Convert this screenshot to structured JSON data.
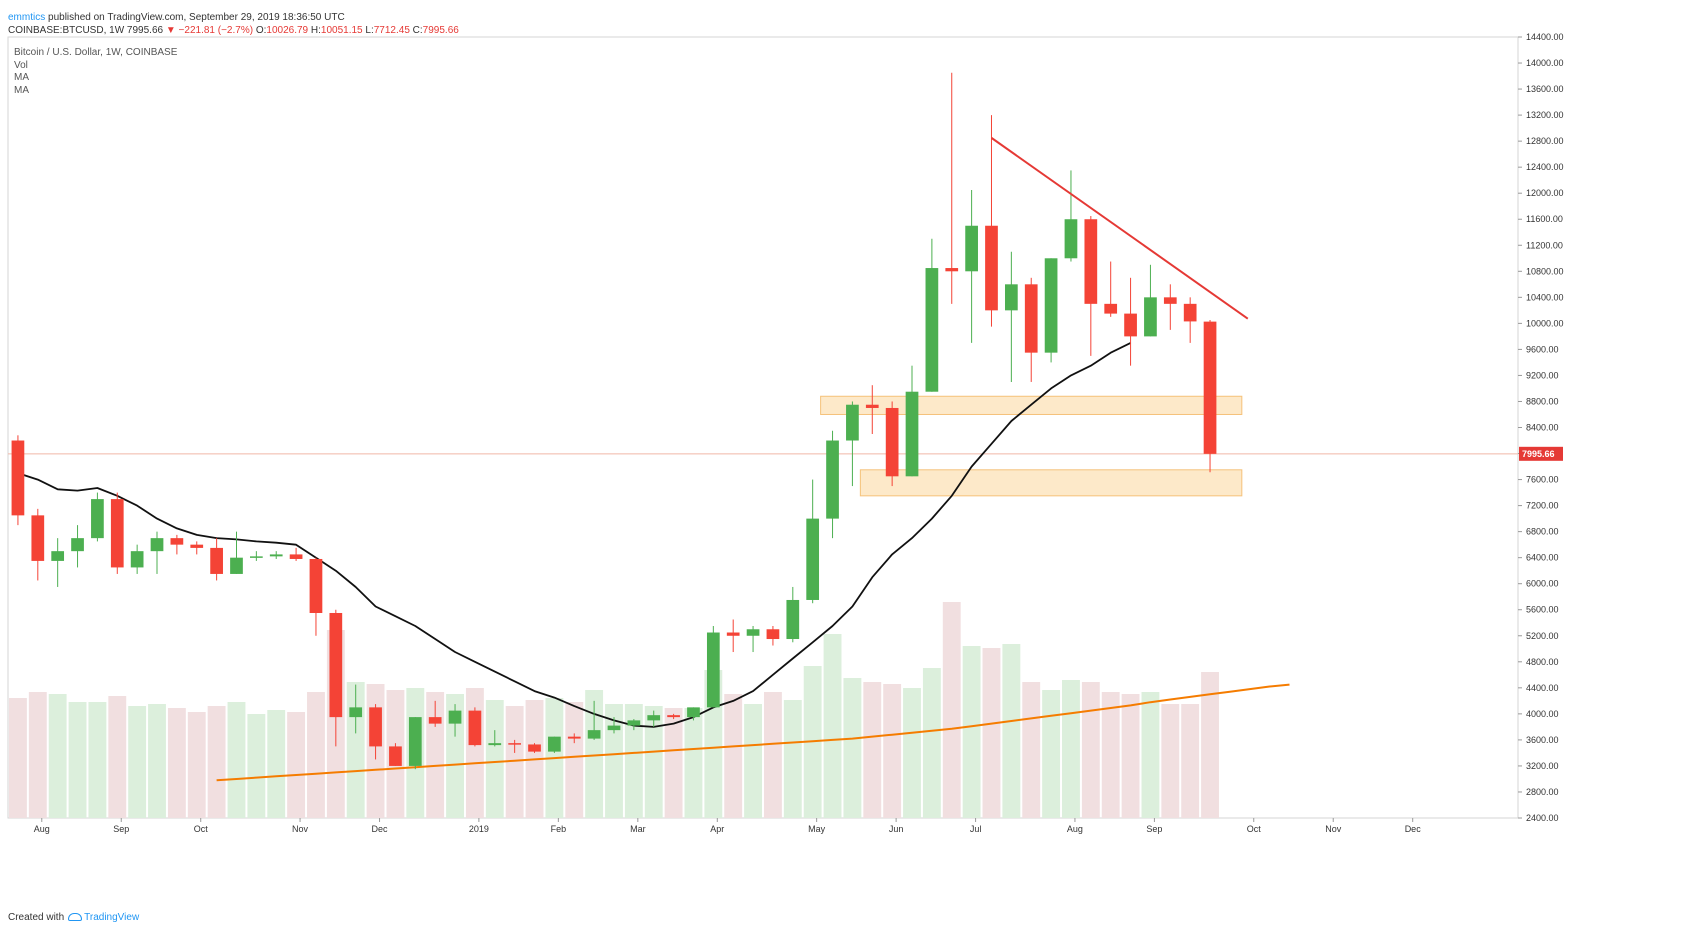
{
  "header": {
    "author": "emmtics",
    "published_text": "published on TradingView.com, September 29, 2019 18:36:50 UTC",
    "symbol": "COINBASE:BTCUSD, 1W",
    "price": "7995.66",
    "change": "−221.81 (−2.7%)",
    "o_label": "O:",
    "o": "10026.79",
    "h_label": "H:",
    "h": "10051.15",
    "l_label": "L:",
    "l": "7712.45",
    "c_label": "C:",
    "c": "7995.66"
  },
  "legend": {
    "title": "Bitcoin / U.S. Dollar, 1W, COINBASE",
    "vol": "Vol",
    "ma1": "MA",
    "ma2": "MA"
  },
  "footer": {
    "created_with": "Created with",
    "brand": "TradingView"
  },
  "colors": {
    "up": "#4caf50",
    "down": "#f44336",
    "vol_up": "#dcefdc",
    "vol_down": "#f1dfe0",
    "ma_short": "#111111",
    "ma_long": "#f57c00",
    "trendline": "#e53935",
    "zone_fill": "#fde5bf",
    "zone_stroke": "#f5c27a",
    "last_price": "#e53935"
  },
  "chart_data": {
    "type": "candlestick",
    "interval": "1W",
    "ylim": [
      2400,
      14400
    ],
    "yticks": [
      2400,
      2800,
      3200,
      3600,
      4000,
      4400,
      4800,
      5200,
      5600,
      6000,
      6400,
      6800,
      7200,
      7600,
      8000,
      8400,
      8800,
      9200,
      9600,
      10000,
      10400,
      10800,
      11200,
      11600,
      12000,
      12400,
      12800,
      13200,
      13600,
      14000,
      14400
    ],
    "ytick_labels": [
      "2400.00",
      "2800.00",
      "3200.00",
      "3600.00",
      "4000.00",
      "4400.00",
      "4800.00",
      "5200.00",
      "5600.00",
      "6000.00",
      "6400.00",
      "6800.00",
      "7200.00",
      "7600.00",
      "8000.00",
      "8400.00",
      "8800.00",
      "9200.00",
      "9600.00",
      "10000.00",
      "10400.00",
      "10800.00",
      "11200.00",
      "11600.00",
      "12000.00",
      "12400.00",
      "12800.00",
      "13200.00",
      "13600.00",
      "14000.00",
      "14400.00"
    ],
    "xticks": [
      {
        "label": "Aug",
        "week": 1.2
      },
      {
        "label": "Sep",
        "week": 5.2
      },
      {
        "label": "Oct",
        "week": 9.2
      },
      {
        "label": "Nov",
        "week": 14.2
      },
      {
        "label": "Dec",
        "week": 18.2
      },
      {
        "label": "2019",
        "week": 23.2
      },
      {
        "label": "Feb",
        "week": 27.2
      },
      {
        "label": "Mar",
        "week": 31.2
      },
      {
        "label": "Apr",
        "week": 35.2
      },
      {
        "label": "May",
        "week": 40.2
      },
      {
        "label": "Jun",
        "week": 44.2
      },
      {
        "label": "Jul",
        "week": 48.2
      },
      {
        "label": "Aug",
        "week": 53.2
      },
      {
        "label": "Sep",
        "week": 57.2
      },
      {
        "label": "Oct",
        "week": 62.2
      },
      {
        "label": "Nov",
        "week": 66.2
      },
      {
        "label": "Dec",
        "week": 70.2
      }
    ],
    "weeks_visible": 76,
    "candles": [
      {
        "o": 8200,
        "h": 8280,
        "l": 6900,
        "c": 7050
      },
      {
        "o": 7050,
        "h": 7150,
        "l": 6050,
        "c": 6350
      },
      {
        "o": 6350,
        "h": 6700,
        "l": 5950,
        "c": 6500
      },
      {
        "o": 6500,
        "h": 6900,
        "l": 6250,
        "c": 6700
      },
      {
        "o": 6700,
        "h": 7400,
        "l": 6650,
        "c": 7300
      },
      {
        "o": 7300,
        "h": 7400,
        "l": 6150,
        "c": 6250
      },
      {
        "o": 6250,
        "h": 6600,
        "l": 6150,
        "c": 6500
      },
      {
        "o": 6500,
        "h": 6800,
        "l": 6150,
        "c": 6700
      },
      {
        "o": 6700,
        "h": 6750,
        "l": 6450,
        "c": 6600
      },
      {
        "o": 6600,
        "h": 6650,
        "l": 6450,
        "c": 6550
      },
      {
        "o": 6550,
        "h": 6700,
        "l": 6050,
        "c": 6150
      },
      {
        "o": 6150,
        "h": 6800,
        "l": 6150,
        "c": 6400
      },
      {
        "o": 6400,
        "h": 6500,
        "l": 6350,
        "c": 6420
      },
      {
        "o": 6420,
        "h": 6500,
        "l": 6380,
        "c": 6450
      },
      {
        "o": 6450,
        "h": 6550,
        "l": 6350,
        "c": 6380
      },
      {
        "o": 6380,
        "h": 6400,
        "l": 5200,
        "c": 5550
      },
      {
        "o": 5550,
        "h": 5600,
        "l": 3500,
        "c": 3950
      },
      {
        "o": 3950,
        "h": 4450,
        "l": 3700,
        "c": 4100
      },
      {
        "o": 4100,
        "h": 4150,
        "l": 3300,
        "c": 3500
      },
      {
        "o": 3500,
        "h": 3550,
        "l": 3200,
        "c": 3200
      },
      {
        "o": 3200,
        "h": 3950,
        "l": 3150,
        "c": 3950
      },
      {
        "o": 3950,
        "h": 4200,
        "l": 3800,
        "c": 3850
      },
      {
        "o": 3850,
        "h": 4150,
        "l": 3650,
        "c": 4050
      },
      {
        "o": 4050,
        "h": 4100,
        "l": 3500,
        "c": 3520
      },
      {
        "o": 3520,
        "h": 3750,
        "l": 3500,
        "c": 3550
      },
      {
        "o": 3550,
        "h": 3600,
        "l": 3400,
        "c": 3530
      },
      {
        "o": 3530,
        "h": 3550,
        "l": 3400,
        "c": 3420
      },
      {
        "o": 3420,
        "h": 3650,
        "l": 3400,
        "c": 3650
      },
      {
        "o": 3650,
        "h": 3700,
        "l": 3550,
        "c": 3620
      },
      {
        "o": 3620,
        "h": 4200,
        "l": 3600,
        "c": 3750
      },
      {
        "o": 3750,
        "h": 3950,
        "l": 3700,
        "c": 3820
      },
      {
        "o": 3820,
        "h": 3920,
        "l": 3750,
        "c": 3900
      },
      {
        "o": 3900,
        "h": 4050,
        "l": 3800,
        "c": 3980
      },
      {
        "o": 3980,
        "h": 4000,
        "l": 3920,
        "c": 3950
      },
      {
        "o": 3950,
        "h": 4100,
        "l": 3900,
        "c": 4100
      },
      {
        "o": 4100,
        "h": 5350,
        "l": 4100,
        "c": 5250
      },
      {
        "o": 5250,
        "h": 5450,
        "l": 4950,
        "c": 5200
      },
      {
        "o": 5200,
        "h": 5350,
        "l": 4950,
        "c": 5300
      },
      {
        "o": 5300,
        "h": 5350,
        "l": 5050,
        "c": 5150
      },
      {
        "o": 5150,
        "h": 5950,
        "l": 5100,
        "c": 5750
      },
      {
        "o": 5750,
        "h": 7600,
        "l": 5700,
        "c": 7000
      },
      {
        "o": 7000,
        "h": 8350,
        "l": 6700,
        "c": 8200
      },
      {
        "o": 8200,
        "h": 8800,
        "l": 7500,
        "c": 8750
      },
      {
        "o": 8750,
        "h": 9050,
        "l": 8300,
        "c": 8700
      },
      {
        "o": 8700,
        "h": 8800,
        "l": 7500,
        "c": 7650
      },
      {
        "o": 7650,
        "h": 9350,
        "l": 7650,
        "c": 8950
      },
      {
        "o": 8950,
        "h": 11300,
        "l": 8950,
        "c": 10850
      },
      {
        "o": 10850,
        "h": 13850,
        "l": 10300,
        "c": 10800
      },
      {
        "o": 10800,
        "h": 12050,
        "l": 9700,
        "c": 11500
      },
      {
        "o": 11500,
        "h": 13200,
        "l": 9950,
        "c": 10200
      },
      {
        "o": 10200,
        "h": 11100,
        "l": 9100,
        "c": 10600
      },
      {
        "o": 10600,
        "h": 10700,
        "l": 9100,
        "c": 9550
      },
      {
        "o": 9550,
        "h": 11000,
        "l": 9400,
        "c": 11000
      },
      {
        "o": 11000,
        "h": 12350,
        "l": 10950,
        "c": 11600
      },
      {
        "o": 11600,
        "h": 11650,
        "l": 9500,
        "c": 10300
      },
      {
        "o": 10300,
        "h": 10950,
        "l": 10100,
        "c": 10150
      },
      {
        "o": 10150,
        "h": 10700,
        "l": 9350,
        "c": 9800
      },
      {
        "o": 9800,
        "h": 10900,
        "l": 9800,
        "c": 10400
      },
      {
        "o": 10400,
        "h": 10600,
        "l": 9900,
        "c": 10300
      },
      {
        "o": 10300,
        "h": 10400,
        "l": 9700,
        "c": 10030
      },
      {
        "o": 10026.79,
        "h": 10051.15,
        "l": 7712.45,
        "c": 7995.66
      }
    ],
    "volume_max": 5000,
    "volume": [
      3000,
      3150,
      3100,
      2900,
      2900,
      3050,
      2800,
      2850,
      2750,
      2650,
      2800,
      2900,
      2600,
      2700,
      2650,
      3150,
      4700,
      3400,
      3350,
      3200,
      3250,
      3150,
      3100,
      3250,
      2950,
      2800,
      2950,
      3000,
      2900,
      3200,
      2850,
      2850,
      2800,
      2750,
      2750,
      3700,
      3100,
      2850,
      3150,
      2950,
      3800,
      4600,
      3500,
      3400,
      3350,
      3250,
      3750,
      5400,
      4300,
      4250,
      4350,
      3400,
      3200,
      3450,
      3400,
      3150,
      3100,
      3150,
      2850,
      2850,
      3650
    ],
    "ma_short": [
      7700,
      7600,
      7450,
      7430,
      7470,
      7350,
      7200,
      7000,
      6850,
      6750,
      6700,
      6680,
      6650,
      6630,
      6600,
      6400,
      6200,
      5950,
      5650,
      5500,
      5350,
      5150,
      4950,
      4800,
      4650,
      4500,
      4350,
      4250,
      4120,
      4000,
      3900,
      3820,
      3800,
      3850,
      3950,
      4100,
      4200,
      4350,
      4600,
      4850,
      5100,
      5350,
      5650,
      6100,
      6450,
      6700,
      7000,
      7350,
      7800,
      8150,
      8500,
      8750,
      9000,
      9200,
      9350,
      9550,
      9700
    ],
    "ma_short_start": 0,
    "ma_long": [
      2980,
      3000,
      3020,
      3040,
      3060,
      3080,
      3100,
      3120,
      3140,
      3160,
      3180,
      3200,
      3220,
      3240,
      3260,
      3280,
      3300,
      3320,
      3340,
      3360,
      3380,
      3400,
      3420,
      3440,
      3460,
      3480,
      3500,
      3520,
      3540,
      3560,
      3580,
      3600,
      3620,
      3650,
      3680,
      3710,
      3740,
      3770,
      3810,
      3850,
      3890,
      3930,
      3970,
      4010,
      4050,
      4090,
      4130,
      4180,
      4220,
      4260,
      4300,
      4340,
      4380,
      4420,
      4450
    ],
    "ma_long_start": 10,
    "trendline": {
      "from": {
        "week": 49,
        "price": 12850
      },
      "to": {
        "week": 61,
        "price": 9980
      }
    },
    "zones": [
      {
        "from_week": 41,
        "to_week": 61,
        "low": 8600,
        "high": 8880
      },
      {
        "from_week": 43,
        "to_week": 61,
        "low": 7350,
        "high": 7750
      }
    ],
    "last_price": 7995.66,
    "last_price_label": "7995.66"
  }
}
